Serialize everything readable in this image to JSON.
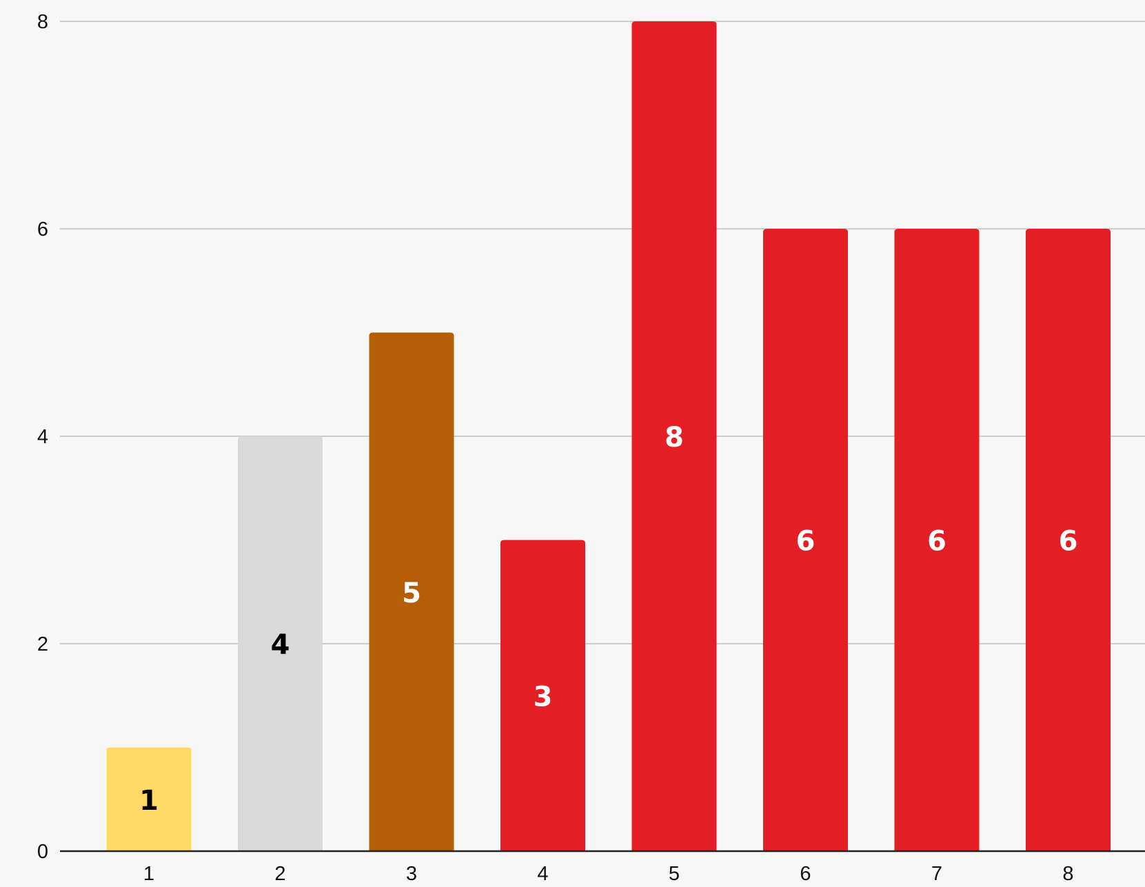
{
  "chart_data": {
    "type": "bar",
    "title": "",
    "xlabel": "",
    "ylabel": "",
    "categories": [
      "1",
      "2",
      "3",
      "4",
      "5",
      "6",
      "7",
      "8"
    ],
    "values": [
      1,
      4,
      5,
      3,
      8,
      6,
      6,
      6
    ],
    "data_labels": [
      "1",
      "4",
      "5",
      "3",
      "8",
      "6",
      "6",
      "6"
    ],
    "bar_colors": [
      "#ffd966",
      "#d9d9d9",
      "#b45f06",
      "#e31e24",
      "#e31e24",
      "#e31e24",
      "#e31e24",
      "#e31e24"
    ],
    "label_colors": [
      "#000000",
      "#000000",
      "#ffffff",
      "#ffffff",
      "#ffffff",
      "#ffffff",
      "#ffffff",
      "#ffffff"
    ],
    "ylim": [
      0,
      8
    ],
    "yticks": [
      0,
      2,
      4,
      6,
      8
    ],
    "grid": true,
    "legend": false
  }
}
